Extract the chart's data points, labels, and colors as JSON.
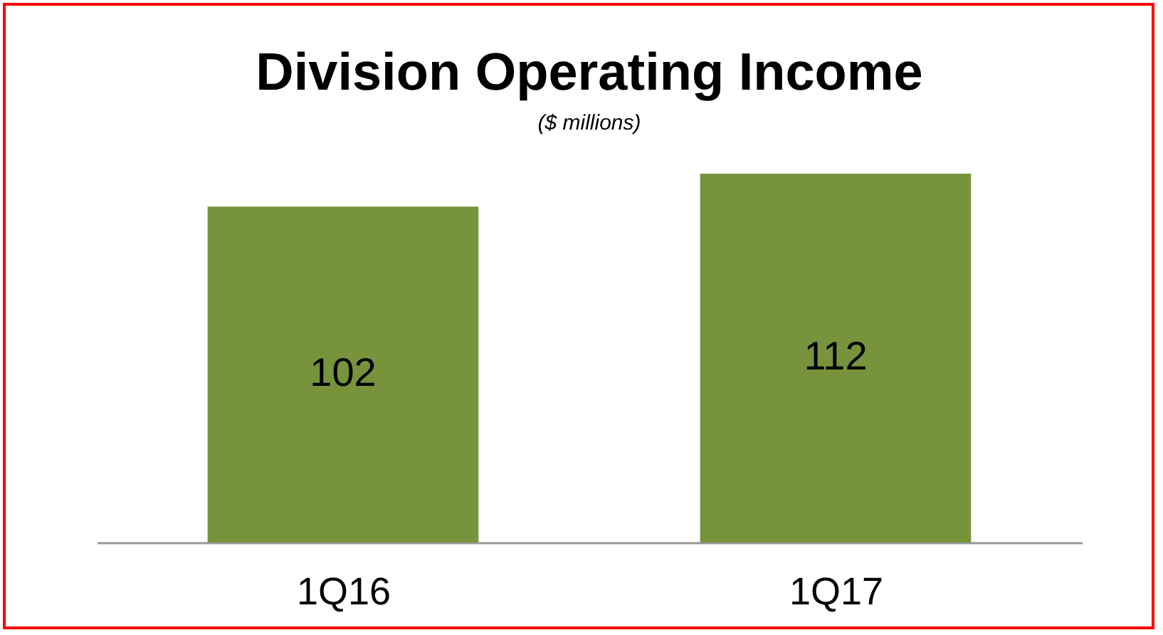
{
  "chart_data": {
    "type": "bar",
    "title": "Division Operating Income",
    "subtitle": "($ millions)",
    "categories": [
      "1Q16",
      "1Q17"
    ],
    "values": [
      102,
      112
    ],
    "color": "#77933c",
    "data_labels": true
  }
}
